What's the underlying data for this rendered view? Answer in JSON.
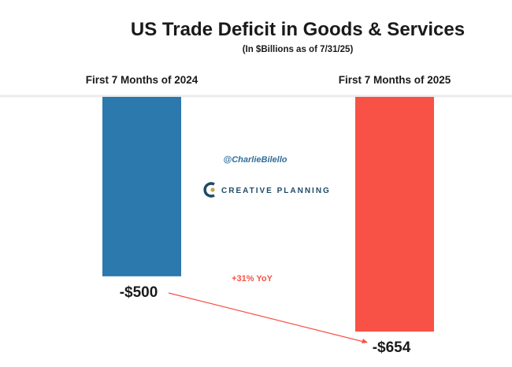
{
  "chart_data": {
    "type": "bar",
    "title": "US Trade Deficit in Goods & Services",
    "subtitle": "(In $Billions as of 7/31/25)",
    "categories": [
      "First 7 Months of 2024",
      "First 7 Months of 2025"
    ],
    "values": [
      -500,
      -654
    ],
    "value_labels": [
      "-$500",
      "-$654"
    ],
    "colors": [
      "#2b79ad",
      "#f85246"
    ],
    "ylim": [
      -654,
      0
    ],
    "xlabel": "",
    "ylabel": "",
    "grid": false,
    "annotation": {
      "text": "+31% YoY",
      "color": "#f85246"
    }
  },
  "branding": {
    "handle": "@CharlieBilello",
    "logo_text": "CREATIVE PLANNING",
    "logo_mark": "C",
    "handle_color": "#2f6f9a",
    "logo_color": "#1f4a66",
    "logo_accent": "#c9a15a"
  }
}
